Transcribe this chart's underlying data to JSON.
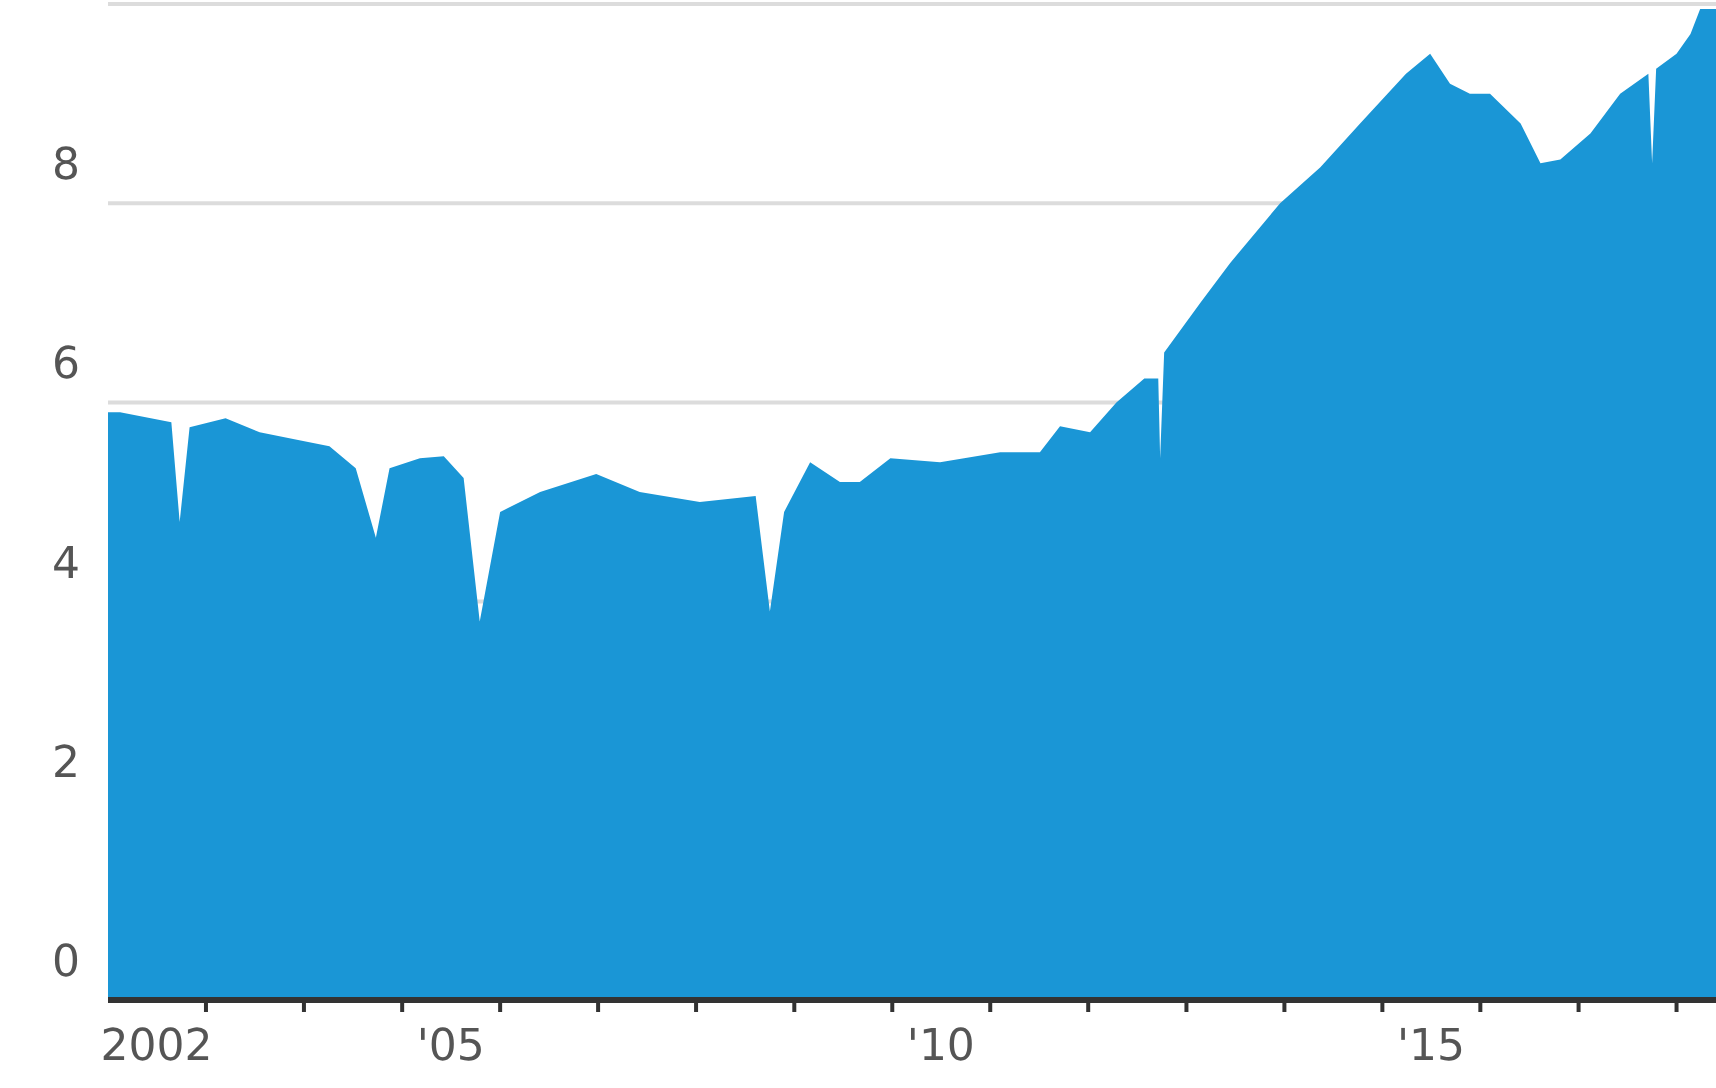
{
  "chart_data": {
    "type": "area",
    "color": "#1a96d6",
    "grid": "y",
    "ylim": [
      0,
      10
    ],
    "yticks": [
      0,
      2,
      4,
      6,
      8,
      {
        "value": 10,
        "label": null
      }
    ],
    "xlim": [
      "2002-01-01",
      "2018-05-28"
    ],
    "xticks": [
      {
        "value": "2002-07-01",
        "label": "2002"
      },
      {
        "value": "2005-07-01",
        "label": "'05"
      },
      {
        "value": "2010-07-01",
        "label": "'10"
      },
      {
        "value": "2015-07-01",
        "label": "'15"
      },
      {
        "value": "2003-01-01",
        "label": null
      },
      {
        "value": "2004-01-01",
        "label": null
      },
      {
        "value": "2005-01-01",
        "label": null
      },
      {
        "value": "2006-01-01",
        "label": null
      },
      {
        "value": "2007-01-01",
        "label": null
      },
      {
        "value": "2008-01-01",
        "label": null
      },
      {
        "value": "2009-01-01",
        "label": null
      },
      {
        "value": "2010-01-01",
        "label": null
      },
      {
        "value": "2011-01-01",
        "label": null
      },
      {
        "value": "2012-01-01",
        "label": null
      },
      {
        "value": "2013-01-01",
        "label": null
      },
      {
        "value": "2014-01-01",
        "label": null
      },
      {
        "value": "2015-01-01",
        "label": null
      },
      {
        "value": "2016-01-01",
        "label": null
      },
      {
        "value": "2017-01-01",
        "label": null
      },
      {
        "value": "2018-01-01",
        "label": null
      }
    ],
    "x": [
      "2002-01-01",
      "2002-02-15",
      "2002-08-25",
      "2002-09-25",
      "2002-11-01",
      "2003-03-15",
      "2003-07-20",
      "2003-12-15",
      "2004-04-05",
      "2004-07-12",
      "2004-09-25",
      "2004-11-15",
      "2005-03-08",
      "2005-06-05",
      "2005-08-18",
      "2005-10-17",
      "2006-01-01",
      "2006-05-30",
      "2006-12-25",
      "2007-06-05",
      "2008-01-15",
      "2008-08-10",
      "2008-10-02",
      "2008-11-24",
      "2009-03-01",
      "2009-06-20",
      "2009-09-02",
      "2009-12-25",
      "2010-06-28",
      "2011-02-07",
      "2011-07-05",
      "2011-09-18",
      "2012-01-08",
      "2012-04-15",
      "2012-07-28",
      "2012-09-18",
      "2012-09-25",
      "2012-10-10",
      "2013-02-22",
      "2013-06-13",
      "2013-12-16",
      "2014-05-15",
      "2014-10-10",
      "2015-03-30",
      "2015-06-28",
      "2015-09-10",
      "2015-11-23",
      "2016-02-06",
      "2016-05-30",
      "2016-08-12",
      "2016-10-25",
      "2017-02-14",
      "2017-06-05",
      "2017-09-18",
      "2017-10-02",
      "2017-10-17",
      "2018-01-01",
      "2018-02-22",
      "2018-03-30",
      "2018-05-28"
    ],
    "values": [
      5.9,
      5.9,
      5.8,
      4.8,
      5.75,
      5.84,
      5.7,
      5.62,
      5.56,
      5.34,
      4.64,
      5.34,
      5.44,
      5.46,
      5.24,
      3.8,
      4.9,
      5.1,
      5.28,
      5.1,
      5.0,
      5.06,
      3.9,
      4.9,
      5.4,
      5.2,
      5.2,
      5.44,
      5.4,
      5.5,
      5.5,
      5.76,
      5.7,
      6.0,
      6.24,
      6.24,
      5.44,
      6.5,
      7.0,
      7.4,
      8.0,
      8.36,
      8.8,
      9.3,
      9.5,
      9.2,
      9.1,
      9.1,
      8.8,
      8.4,
      8.44,
      8.7,
      9.1,
      9.3,
      8.4,
      9.35,
      9.5,
      9.7,
      9.95,
      9.95
    ]
  }
}
